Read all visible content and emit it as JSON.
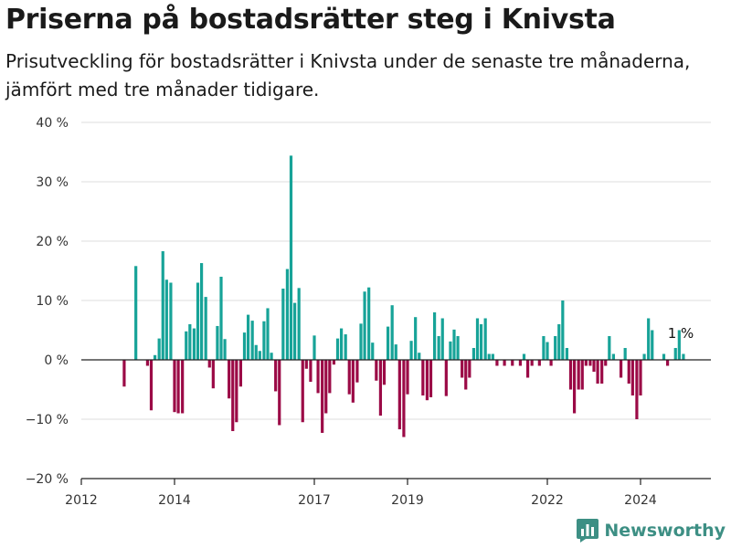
{
  "header": {
    "title": "Priserna på bostadsrätter steg i Knivsta",
    "subtitle": "Prisutveckling för bostadsrätter i Knivsta under de senaste tre månaderna, jämfört med tre månader tidigare."
  },
  "brand": {
    "name": "Newsworthy",
    "icon": "bar-chart-logo-icon"
  },
  "colors": {
    "positive": "#17a398",
    "negative": "#9b0a46",
    "grid": "#dddddd",
    "axis": "#222222"
  },
  "chart_data": {
    "type": "bar",
    "title": "Priserna på bostadsrätter steg i Knivsta",
    "subtitle": "Prisutveckling för bostadsrätter i Knivsta under de senaste tre månaderna, jämfört med tre månader tidigare.",
    "xlabel": "",
    "ylabel": "",
    "x_range": [
      2012.0,
      2025.6
    ],
    "ylim": [
      -20,
      40
    ],
    "y_ticks": [
      -20,
      -10,
      0,
      10,
      20,
      30,
      40
    ],
    "y_tick_labels": [
      "−20 %",
      "−10 %",
      "0 %",
      "10 %",
      "20 %",
      "30 %",
      "40 %"
    ],
    "x_ticks": [
      2012,
      2014,
      2017,
      2019,
      2022,
      2024
    ],
    "x_tick_labels": [
      "2012",
      "2014",
      "2017",
      "2019",
      "2022",
      "2024"
    ],
    "grid": true,
    "annotation": "1 %",
    "bars": [
      {
        "x": 2012.92,
        "y": -4.5
      },
      {
        "x": 2013.17,
        "y": 15.8
      },
      {
        "x": 2013.42,
        "y": -1.0
      },
      {
        "x": 2013.5,
        "y": -8.5
      },
      {
        "x": 2013.58,
        "y": 0.8
      },
      {
        "x": 2013.67,
        "y": 3.6
      },
      {
        "x": 2013.75,
        "y": 18.3
      },
      {
        "x": 2013.83,
        "y": 13.5
      },
      {
        "x": 2013.92,
        "y": 13.0
      },
      {
        "x": 2014.0,
        "y": -8.8
      },
      {
        "x": 2014.08,
        "y": -9.0
      },
      {
        "x": 2014.17,
        "y": -9.0
      },
      {
        "x": 2014.25,
        "y": 4.8
      },
      {
        "x": 2014.33,
        "y": 6.0
      },
      {
        "x": 2014.42,
        "y": 5.3
      },
      {
        "x": 2014.5,
        "y": 13.0
      },
      {
        "x": 2014.58,
        "y": 16.3
      },
      {
        "x": 2014.67,
        "y": 10.6
      },
      {
        "x": 2014.75,
        "y": -1.3
      },
      {
        "x": 2014.83,
        "y": -4.8
      },
      {
        "x": 2014.92,
        "y": 5.7
      },
      {
        "x": 2015.0,
        "y": 14.0
      },
      {
        "x": 2015.08,
        "y": 3.5
      },
      {
        "x": 2015.17,
        "y": -6.5
      },
      {
        "x": 2015.25,
        "y": -12.0
      },
      {
        "x": 2015.33,
        "y": -10.5
      },
      {
        "x": 2015.42,
        "y": -4.5
      },
      {
        "x": 2015.5,
        "y": 4.6
      },
      {
        "x": 2015.58,
        "y": 7.6
      },
      {
        "x": 2015.67,
        "y": 6.6
      },
      {
        "x": 2015.75,
        "y": 2.5
      },
      {
        "x": 2015.83,
        "y": 1.5
      },
      {
        "x": 2015.92,
        "y": 6.5
      },
      {
        "x": 2016.0,
        "y": 8.7
      },
      {
        "x": 2016.08,
        "y": 1.2
      },
      {
        "x": 2016.17,
        "y": -5.3
      },
      {
        "x": 2016.25,
        "y": -11.0
      },
      {
        "x": 2016.33,
        "y": 12.0
      },
      {
        "x": 2016.42,
        "y": 15.3
      },
      {
        "x": 2016.5,
        "y": 34.4
      },
      {
        "x": 2016.58,
        "y": 9.6
      },
      {
        "x": 2016.67,
        "y": 12.1
      },
      {
        "x": 2016.75,
        "y": -10.5
      },
      {
        "x": 2016.83,
        "y": -1.5
      },
      {
        "x": 2016.92,
        "y": -3.7
      },
      {
        "x": 2017.0,
        "y": 4.1
      },
      {
        "x": 2017.08,
        "y": -5.6
      },
      {
        "x": 2017.17,
        "y": -12.3
      },
      {
        "x": 2017.25,
        "y": -9.0
      },
      {
        "x": 2017.33,
        "y": -5.6
      },
      {
        "x": 2017.42,
        "y": -0.8
      },
      {
        "x": 2017.5,
        "y": 3.6
      },
      {
        "x": 2017.58,
        "y": 5.3
      },
      {
        "x": 2017.67,
        "y": 4.3
      },
      {
        "x": 2017.75,
        "y": -5.8
      },
      {
        "x": 2017.83,
        "y": -7.2
      },
      {
        "x": 2017.92,
        "y": -3.8
      },
      {
        "x": 2018.0,
        "y": 6.1
      },
      {
        "x": 2018.08,
        "y": 11.5
      },
      {
        "x": 2018.17,
        "y": 12.2
      },
      {
        "x": 2018.25,
        "y": 2.9
      },
      {
        "x": 2018.33,
        "y": -3.5
      },
      {
        "x": 2018.42,
        "y": -9.4
      },
      {
        "x": 2018.5,
        "y": -4.2
      },
      {
        "x": 2018.58,
        "y": 5.6
      },
      {
        "x": 2018.67,
        "y": 9.2
      },
      {
        "x": 2018.75,
        "y": 2.6
      },
      {
        "x": 2018.83,
        "y": -11.7
      },
      {
        "x": 2018.92,
        "y": -13.0
      },
      {
        "x": 2019.0,
        "y": -5.8
      },
      {
        "x": 2019.08,
        "y": 3.2
      },
      {
        "x": 2019.17,
        "y": 7.2
      },
      {
        "x": 2019.25,
        "y": 1.2
      },
      {
        "x": 2019.33,
        "y": -6.0
      },
      {
        "x": 2019.42,
        "y": -6.8
      },
      {
        "x": 2019.5,
        "y": -6.3
      },
      {
        "x": 2019.58,
        "y": 8.0
      },
      {
        "x": 2019.67,
        "y": 4.0
      },
      {
        "x": 2019.75,
        "y": 7.0
      },
      {
        "x": 2019.83,
        "y": -6.1
      },
      {
        "x": 2019.92,
        "y": 3.1
      },
      {
        "x": 2020.0,
        "y": 5.1
      },
      {
        "x": 2020.08,
        "y": 4.0
      },
      {
        "x": 2020.17,
        "y": -3.0
      },
      {
        "x": 2020.25,
        "y": -5.0
      },
      {
        "x": 2020.33,
        "y": -3.0
      },
      {
        "x": 2020.42,
        "y": 2.0
      },
      {
        "x": 2020.5,
        "y": 7.0
      },
      {
        "x": 2020.58,
        "y": 6.0
      },
      {
        "x": 2020.67,
        "y": 7.0
      },
      {
        "x": 2020.75,
        "y": 1.0
      },
      {
        "x": 2020.83,
        "y": 1.0
      },
      {
        "x": 2020.92,
        "y": -1.0
      },
      {
        "x": 2021.08,
        "y": -1.0
      },
      {
        "x": 2021.25,
        "y": -1.0
      },
      {
        "x": 2021.42,
        "y": -1.0
      },
      {
        "x": 2021.5,
        "y": 1.0
      },
      {
        "x": 2021.58,
        "y": -3.0
      },
      {
        "x": 2021.67,
        "y": -1.0
      },
      {
        "x": 2021.83,
        "y": -1.0
      },
      {
        "x": 2021.92,
        "y": 4.0
      },
      {
        "x": 2022.0,
        "y": 3.0
      },
      {
        "x": 2022.08,
        "y": -1.0
      },
      {
        "x": 2022.17,
        "y": 4.0
      },
      {
        "x": 2022.25,
        "y": 6.0
      },
      {
        "x": 2022.33,
        "y": 10.0
      },
      {
        "x": 2022.42,
        "y": 2.0
      },
      {
        "x": 2022.5,
        "y": -5.0
      },
      {
        "x": 2022.58,
        "y": -9.0
      },
      {
        "x": 2022.67,
        "y": -5.0
      },
      {
        "x": 2022.75,
        "y": -5.0
      },
      {
        "x": 2022.83,
        "y": -1.0
      },
      {
        "x": 2022.92,
        "y": -1.0
      },
      {
        "x": 2023.0,
        "y": -2.0
      },
      {
        "x": 2023.08,
        "y": -4.0
      },
      {
        "x": 2023.17,
        "y": -4.0
      },
      {
        "x": 2023.25,
        "y": -1.0
      },
      {
        "x": 2023.33,
        "y": 4.0
      },
      {
        "x": 2023.42,
        "y": 1.0
      },
      {
        "x": 2023.58,
        "y": -3.0
      },
      {
        "x": 2023.67,
        "y": 2.0
      },
      {
        "x": 2023.75,
        "y": -4.0
      },
      {
        "x": 2023.83,
        "y": -6.0
      },
      {
        "x": 2023.92,
        "y": -10.0
      },
      {
        "x": 2024.0,
        "y": -6.0
      },
      {
        "x": 2024.08,
        "y": 1.0
      },
      {
        "x": 2024.17,
        "y": 7.0
      },
      {
        "x": 2024.25,
        "y": 5.0
      },
      {
        "x": 2024.5,
        "y": 1.0
      },
      {
        "x": 2024.58,
        "y": -1.0
      },
      {
        "x": 2024.75,
        "y": 2.0
      },
      {
        "x": 2024.83,
        "y": 5.0
      },
      {
        "x": 2024.92,
        "y": 1.0
      }
    ]
  }
}
